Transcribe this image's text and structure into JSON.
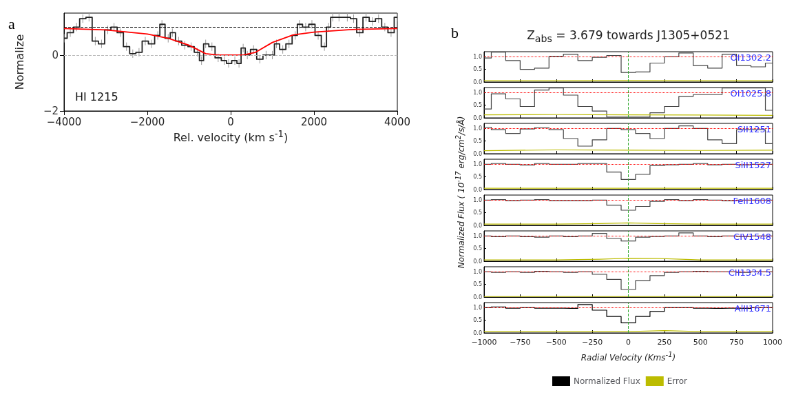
{
  "chart_data": [
    {
      "type": "step",
      "xlabel": "Rel. velocity  (km s$^{-1}$)",
      "ylabel": "Normalize",
      "annotations": [
        "a",
        "HI 1215"
      ],
      "xlim": [
        -4000,
        4000
      ],
      "xticks": [
        -4000,
        -2000,
        0,
        2000,
        4000
      ],
      "ylim": [
        -2,
        1.5
      ],
      "yticks": [
        -2,
        0
      ],
      "marker": "none",
      "ref_lines": [
        {
          "axis": "y",
          "value": 1,
          "color": "#000000",
          "line_style": "dashed"
        },
        {
          "axis": "y",
          "value": 0,
          "color": "#bbbbbb",
          "line_style": "dashed"
        }
      ],
      "series": [
        {
          "type": "step",
          "color": "#222222",
          "x": [
            -4000,
            -3850,
            -3700,
            -3550,
            -3400,
            -3250,
            -3100,
            -2950,
            -2800,
            -2650,
            -2500,
            -2350,
            -2200,
            -2050,
            -1900,
            -1750,
            -1650,
            -1500,
            -1400,
            -1250,
            -1100,
            -950,
            -800,
            -700,
            -600,
            -450,
            -300,
            -150,
            -50,
            100,
            200,
            300,
            400,
            550,
            700,
            850,
            1000,
            1100,
            1250,
            1400,
            1550,
            1650,
            1800,
            1950,
            2100,
            2250,
            2350,
            2450,
            2600,
            2800,
            2950,
            3100,
            3250,
            3400,
            3550,
            3700,
            3850,
            4000
          ],
          "values": [
            0.6,
            0.8,
            1.0,
            1.3,
            1.35,
            0.5,
            0.4,
            0.9,
            1.0,
            0.8,
            0.3,
            0.05,
            0.1,
            0.5,
            0.4,
            0.7,
            1.1,
            0.6,
            0.8,
            0.5,
            0.35,
            0.3,
            0.1,
            -0.2,
            0.4,
            0.3,
            -0.1,
            -0.2,
            -0.3,
            -0.2,
            -0.3,
            0.25,
            0.0,
            0.2,
            -0.15,
            0.0,
            0.0,
            0.4,
            0.2,
            0.4,
            0.7,
            1.1,
            1.0,
            1.1,
            0.7,
            0.3,
            1.0,
            1.35,
            1.35,
            1.35,
            1.3,
            0.8,
            1.35,
            1.2,
            1.3,
            1.0,
            0.8,
            1.35
          ],
          "errors": [
            0.15,
            0.15,
            0.15,
            0.15,
            0.15,
            0.15,
            0.15,
            0.15,
            0.15,
            0.15,
            0.15,
            0.15,
            0.15,
            0.15,
            0.15,
            0.15,
            0.15,
            0.15,
            0.15,
            0.15,
            0.15,
            0.15,
            0.15,
            0.15,
            0.15,
            0.15,
            0.15,
            0.15,
            0.15,
            0.15,
            0.15,
            0.15,
            0.15,
            0.15,
            0.15,
            0.15,
            0.15,
            0.15,
            0.15,
            0.15,
            0.15,
            0.15,
            0.15,
            0.15,
            0.15,
            0.15,
            0.15,
            0.15,
            0.15,
            0.15,
            0.15,
            0.15,
            0.15,
            0.15,
            0.15,
            0.15,
            0.15,
            0.15
          ]
        },
        {
          "type": "line",
          "color": "#ff0000",
          "x": [
            -4000,
            -3000,
            -2000,
            -1500,
            -1000,
            -600,
            -300,
            0,
            300,
            600,
            1000,
            1500,
            2000,
            3000,
            4000
          ],
          "values": [
            0.95,
            0.9,
            0.75,
            0.6,
            0.35,
            0.05,
            0,
            0,
            0,
            0.1,
            0.45,
            0.72,
            0.82,
            0.92,
            0.95
          ]
        }
      ]
    },
    {
      "type": "step",
      "title": "Z$_{abs}$ = 3.679 towards  J1305+0521",
      "annotations": [
        "b",
        "OI1302.2"
      ],
      "tick_labels": "y",
      "xlim": [
        -1000,
        1000
      ],
      "xticks": [
        -1000,
        -750,
        -500,
        -250,
        0,
        250,
        500,
        750,
        1000
      ],
      "ylim": [
        0,
        1.2
      ],
      "yticks": [
        {
          "value": 0,
          "label": "0.0"
        },
        {
          "value": 0.5,
          "label": "0.5"
        },
        {
          "value": 1,
          "label": "1.0"
        }
      ],
      "marker": "none",
      "ref_lines": [
        {
          "axis": "y",
          "value": 1,
          "color": "#ff0000",
          "line_style": "dotted"
        },
        {
          "axis": "x",
          "value": 0,
          "color": "#33aa33",
          "line_style": "dashed"
        }
      ],
      "series": [
        {
          "type": "step",
          "color": "#444444",
          "x": [
            -1000,
            -900,
            -800,
            -700,
            -600,
            -500,
            -400,
            -300,
            -200,
            -100,
            0,
            100,
            200,
            300,
            400,
            500,
            600,
            700,
            800,
            900,
            1000
          ],
          "values": [
            0.95,
            1.18,
            0.85,
            0.5,
            0.55,
            1.02,
            1.1,
            0.85,
            0.98,
            1.05,
            0.38,
            0.4,
            0.75,
            1.0,
            1.15,
            0.65,
            0.55,
            1.1,
            0.65,
            0.6,
            0.75
          ]
        },
        {
          "type": "line",
          "color": "#bcbc00",
          "x": [
            -1000,
            -500,
            0,
            500,
            1000
          ],
          "values": [
            0.05,
            0.05,
            0.06,
            0.05,
            0.05
          ]
        }
      ]
    },
    {
      "type": "step",
      "annotations": [
        "OI1025.8"
      ],
      "tick_labels": "y",
      "xlim": [
        -1000,
        1000
      ],
      "xticks": [
        -1000,
        -750,
        -500,
        -250,
        0,
        250,
        500,
        750,
        1000
      ],
      "ylim": [
        0,
        1.2
      ],
      "yticks": [
        {
          "value": 0,
          "label": "0.0"
        },
        {
          "value": 0.5,
          "label": "0.5"
        },
        {
          "value": 1,
          "label": "1.0"
        }
      ],
      "marker": "none",
      "ref_lines": [
        {
          "axis": "y",
          "value": 1,
          "color": "#ff0000",
          "line_style": "dotted"
        },
        {
          "axis": "x",
          "value": 0,
          "color": "#33aa33",
          "line_style": "dashed"
        }
      ],
      "series": [
        {
          "type": "step",
          "color": "#444444",
          "x": [
            -1000,
            -900,
            -800,
            -700,
            -600,
            -500,
            -400,
            -300,
            -200,
            -100,
            0,
            100,
            200,
            300,
            400,
            500,
            600,
            700,
            800,
            900,
            1000
          ],
          "values": [
            0.35,
            0.95,
            0.75,
            0.45,
            1.1,
            1.18,
            0.9,
            0.45,
            0.27,
            0.03,
            0.03,
            0.03,
            0.2,
            0.45,
            0.85,
            0.92,
            0.92,
            1.18,
            1.18,
            1.18,
            0.3
          ]
        },
        {
          "type": "line",
          "color": "#bcbc00",
          "x": [
            -1000,
            -500,
            0,
            500,
            1000
          ],
          "values": [
            0.12,
            0.13,
            0.12,
            0.11,
            0.1
          ]
        }
      ]
    },
    {
      "type": "step",
      "annotations": [
        "SII1251"
      ],
      "tick_labels": "y",
      "xlim": [
        -1000,
        1000
      ],
      "xticks": [
        -1000,
        -750,
        -500,
        -250,
        0,
        250,
        500,
        750,
        1000
      ],
      "ylim": [
        0,
        1.2
      ],
      "yticks": [
        {
          "value": 0,
          "label": "0.0"
        },
        {
          "value": 0.5,
          "label": "0.5"
        },
        {
          "value": 1,
          "label": "1.0"
        }
      ],
      "marker": "none",
      "ref_lines": [
        {
          "axis": "y",
          "value": 1,
          "color": "#ff0000",
          "line_style": "dotted"
        },
        {
          "axis": "x",
          "value": 0,
          "color": "#33aa33",
          "line_style": "dashed"
        }
      ],
      "series": [
        {
          "type": "step",
          "color": "#444444",
          "x": [
            -1000,
            -900,
            -800,
            -700,
            -600,
            -500,
            -400,
            -300,
            -200,
            -100,
            0,
            100,
            200,
            300,
            400,
            500,
            600,
            700,
            800,
            900,
            1000
          ],
          "values": [
            1.05,
            0.95,
            0.8,
            0.98,
            1.03,
            0.95,
            0.6,
            0.3,
            0.55,
            1.0,
            0.95,
            0.8,
            0.6,
            1.0,
            1.1,
            1.0,
            0.55,
            0.4,
            0.95,
            0.95,
            0.4
          ]
        },
        {
          "type": "line",
          "color": "#bcbc00",
          "x": [
            -1000,
            -500,
            0,
            500,
            1000
          ],
          "values": [
            0.12,
            0.15,
            0.14,
            0.13,
            0.14
          ]
        }
      ]
    },
    {
      "type": "step",
      "annotations": [
        "SiII1527"
      ],
      "ylabel": "Normalized Flux ( 10$^{-17}$ erg/cm$^{2}$/s/Å)",
      "tick_labels": "y",
      "xlim": [
        -1000,
        1000
      ],
      "xticks": [
        -1000,
        -750,
        -500,
        -250,
        0,
        250,
        500,
        750,
        1000
      ],
      "ylim": [
        0,
        1.2
      ],
      "yticks": [
        {
          "value": 0,
          "label": "0.0"
        },
        {
          "value": 0.5,
          "label": "0.5"
        },
        {
          "value": 1,
          "label": "1.0"
        }
      ],
      "marker": "none",
      "ref_lines": [
        {
          "axis": "y",
          "value": 1,
          "color": "#ff0000",
          "line_style": "dotted"
        },
        {
          "axis": "x",
          "value": 0,
          "color": "#33aa33",
          "line_style": "dashed"
        }
      ],
      "series": [
        {
          "type": "step",
          "color": "#444444",
          "x": [
            -1000,
            -900,
            -800,
            -700,
            -600,
            -500,
            -400,
            -300,
            -200,
            -100,
            0,
            100,
            200,
            300,
            400,
            500,
            600,
            700,
            800,
            900,
            1000
          ],
          "values": [
            1.0,
            1.03,
            1.0,
            0.97,
            1.03,
            1.0,
            1.0,
            1.03,
            1.03,
            0.69,
            0.4,
            0.6,
            0.95,
            0.98,
            1.0,
            1.03,
            0.98,
            1.0,
            0.98,
            1.0,
            1.0
          ]
        },
        {
          "type": "line",
          "color": "#bcbc00",
          "x": [
            -1000,
            -500,
            0,
            500,
            1000
          ],
          "values": [
            0.05,
            0.05,
            0.05,
            0.05,
            0.05
          ]
        }
      ]
    },
    {
      "type": "step",
      "annotations": [
        "FeII1608"
      ],
      "tick_labels": "y",
      "xlim": [
        -1000,
        1000
      ],
      "xticks": [
        -1000,
        -750,
        -500,
        -250,
        0,
        250,
        500,
        750,
        1000
      ],
      "ylim": [
        0,
        1.2
      ],
      "yticks": [
        {
          "value": 0,
          "label": "0.0"
        },
        {
          "value": 0.5,
          "label": "0.5"
        },
        {
          "value": 1,
          "label": "1.0"
        }
      ],
      "marker": "none",
      "ref_lines": [
        {
          "axis": "y",
          "value": 1,
          "color": "#ff0000",
          "line_style": "dotted"
        },
        {
          "axis": "x",
          "value": 0,
          "color": "#33aa33",
          "line_style": "dashed"
        }
      ],
      "series": [
        {
          "type": "step",
          "color": "#444444",
          "x": [
            -1000,
            -900,
            -800,
            -700,
            -600,
            -500,
            -400,
            -300,
            -200,
            -100,
            0,
            100,
            200,
            300,
            400,
            500,
            600,
            700,
            800,
            900,
            1000
          ],
          "values": [
            1.0,
            1.02,
            0.98,
            1.0,
            1.02,
            0.98,
            0.98,
            0.98,
            1.0,
            0.8,
            0.6,
            0.75,
            0.95,
            1.02,
            0.98,
            1.02,
            1.0,
            0.97,
            1.0,
            1.0,
            1.0
          ]
        },
        {
          "type": "line",
          "color": "#bcbc00",
          "x": [
            -1000,
            -500,
            -200,
            0,
            200,
            500,
            1000
          ],
          "values": [
            0.05,
            0.05,
            0.07,
            0.1,
            0.07,
            0.05,
            0.05
          ]
        }
      ]
    },
    {
      "type": "step",
      "annotations": [
        "CIV1548"
      ],
      "tick_labels": "y",
      "xlim": [
        -1000,
        1000
      ],
      "xticks": [
        -1000,
        -750,
        -500,
        -250,
        0,
        250,
        500,
        750,
        1000
      ],
      "ylim": [
        0,
        1.2
      ],
      "yticks": [
        {
          "value": 0,
          "label": "0.0"
        },
        {
          "value": 0.5,
          "label": "0.5"
        },
        {
          "value": 1,
          "label": "1.0"
        }
      ],
      "marker": "none",
      "ref_lines": [
        {
          "axis": "y",
          "value": 1,
          "color": "#ff0000",
          "line_style": "dotted"
        },
        {
          "axis": "x",
          "value": 0,
          "color": "#33aa33",
          "line_style": "dashed"
        }
      ],
      "series": [
        {
          "type": "step",
          "color": "#444444",
          "x": [
            -1000,
            -900,
            -800,
            -700,
            -600,
            -500,
            -400,
            -300,
            -200,
            -100,
            0,
            100,
            200,
            300,
            400,
            500,
            600,
            700,
            800,
            900,
            1000
          ],
          "values": [
            1.0,
            0.97,
            1.0,
            0.97,
            0.95,
            1.0,
            0.97,
            1.0,
            1.1,
            0.9,
            0.8,
            0.95,
            0.98,
            1.0,
            1.12,
            1.0,
            0.97,
            1.0,
            0.98,
            1.0,
            1.0
          ]
        },
        {
          "type": "line",
          "color": "#bcbc00",
          "x": [
            -1000,
            -500,
            -200,
            0,
            200,
            500,
            1000
          ],
          "values": [
            0.05,
            0.05,
            0.08,
            0.12,
            0.11,
            0.05,
            0.05
          ]
        }
      ]
    },
    {
      "type": "step",
      "annotations": [
        "CII1334.5"
      ],
      "tick_labels": "y",
      "xlim": [
        -1000,
        1000
      ],
      "xticks": [
        -1000,
        -750,
        -500,
        -250,
        0,
        250,
        500,
        750,
        1000
      ],
      "ylim": [
        0,
        1.2
      ],
      "yticks": [
        {
          "value": 0,
          "label": "0.0"
        },
        {
          "value": 0.5,
          "label": "0.5"
        },
        {
          "value": 1,
          "label": "1.0"
        }
      ],
      "marker": "none",
      "ref_lines": [
        {
          "axis": "y",
          "value": 1,
          "color": "#ff0000",
          "line_style": "dotted"
        },
        {
          "axis": "x",
          "value": 0,
          "color": "#33aa33",
          "line_style": "dashed"
        }
      ],
      "series": [
        {
          "type": "step",
          "color": "#444444",
          "x": [
            -1000,
            -900,
            -800,
            -700,
            -600,
            -500,
            -400,
            -300,
            -200,
            -100,
            0,
            100,
            200,
            300,
            400,
            500,
            600,
            700,
            800,
            900,
            1000
          ],
          "values": [
            1.0,
            0.98,
            1.0,
            0.98,
            1.02,
            1.0,
            0.98,
            1.0,
            0.9,
            0.7,
            0.3,
            0.65,
            0.85,
            0.98,
            1.0,
            1.02,
            1.0,
            1.0,
            0.98,
            1.0,
            1.0
          ]
        },
        {
          "type": "line",
          "color": "#bcbc00",
          "x": [
            -1000,
            -500,
            0,
            500,
            1000
          ],
          "values": [
            0.02,
            0.02,
            0.02,
            0.02,
            0.02
          ]
        }
      ]
    },
    {
      "type": "step",
      "annotations": [
        "AlII1671"
      ],
      "xlabel": "Radial Velocity (Kms$^{-1}$)",
      "legend": "bottom",
      "xlim": [
        -1000,
        1000
      ],
      "xticks": [
        -1000,
        -750,
        -500,
        -250,
        0,
        250,
        500,
        750,
        1000
      ],
      "ylim": [
        0,
        1.2
      ],
      "yticks": [
        {
          "value": 0,
          "label": "0.0"
        },
        {
          "value": 0.5,
          "label": "0.5"
        },
        {
          "value": 1,
          "label": "1.0"
        }
      ],
      "marker": "none",
      "ref_lines": [
        {
          "axis": "y",
          "value": 1,
          "color": "#ff0000",
          "line_style": "dotted"
        },
        {
          "axis": "x",
          "value": 0,
          "color": "#33aa33",
          "line_style": "dashed"
        }
      ],
      "series": [
        {
          "name": "Normalized Flux",
          "type": "step",
          "color": "#000000",
          "x": [
            -1000,
            -900,
            -800,
            -700,
            -600,
            -500,
            -400,
            -300,
            -200,
            -100,
            0,
            100,
            200,
            300,
            400,
            500,
            600,
            700,
            800,
            900,
            1000
          ],
          "values": [
            1.0,
            1.03,
            0.98,
            1.0,
            0.98,
            0.98,
            0.97,
            1.12,
            0.9,
            0.65,
            0.4,
            0.65,
            0.85,
            1.0,
            1.0,
            0.98,
            0.97,
            0.98,
            0.97,
            1.0,
            1.0
          ]
        },
        {
          "name": "Error",
          "type": "line",
          "color": "#bcbc00",
          "x": [
            -1000,
            -500,
            0,
            250,
            500,
            1000
          ],
          "values": [
            0.05,
            0.05,
            0.05,
            0.09,
            0.05,
            0.05
          ]
        }
      ]
    }
  ]
}
